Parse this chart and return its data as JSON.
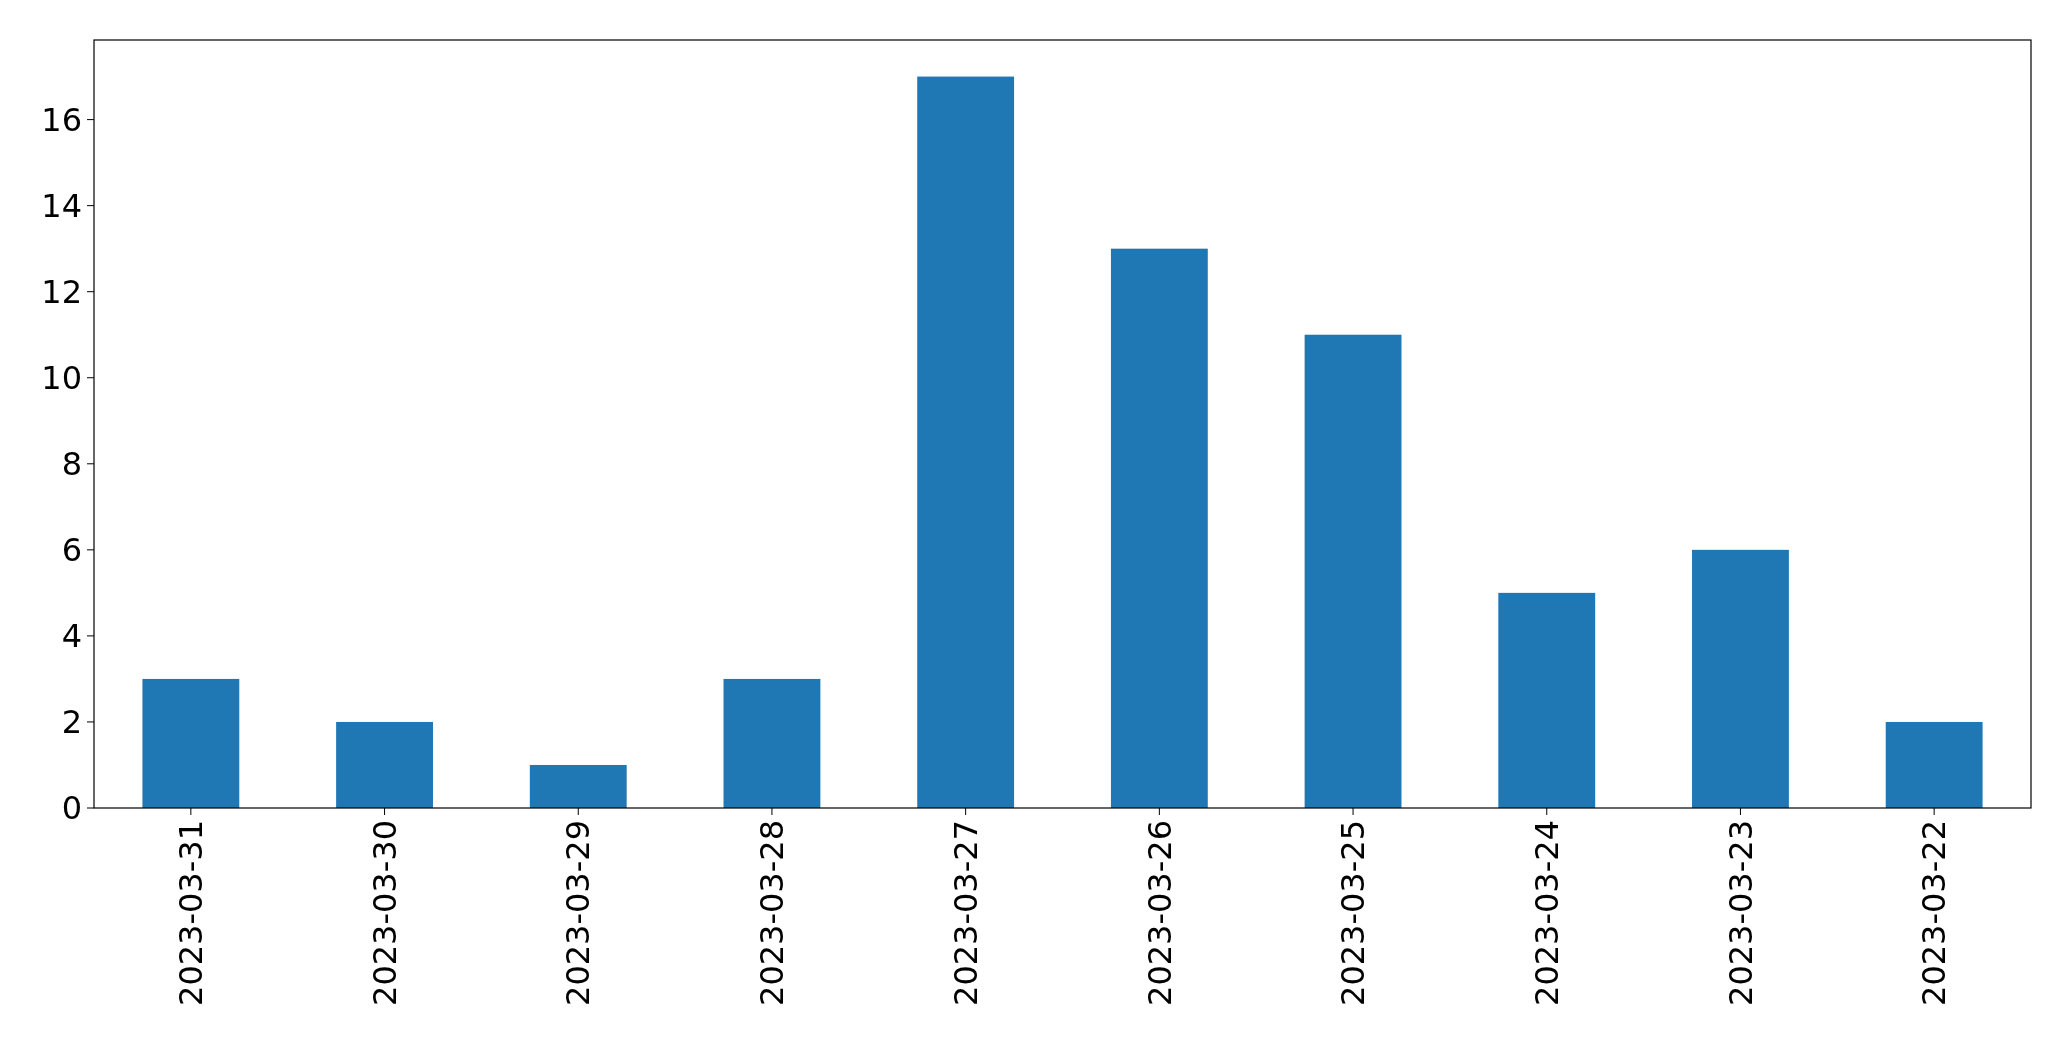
{
  "chart_data": {
    "type": "bar",
    "categories": [
      "2023-03-31",
      "2023-03-30",
      "2023-03-29",
      "2023-03-28",
      "2023-03-27",
      "2023-03-26",
      "2023-03-25",
      "2023-03-24",
      "2023-03-23",
      "2023-03-22"
    ],
    "values": [
      3,
      2,
      1,
      3,
      17,
      13,
      11,
      5,
      6,
      2
    ],
    "color": "#1f77b4",
    "ylim": [
      0,
      17.85
    ],
    "yticks": [
      0,
      2,
      4,
      6,
      8,
      10,
      12,
      14,
      16
    ],
    "grid": false
  }
}
